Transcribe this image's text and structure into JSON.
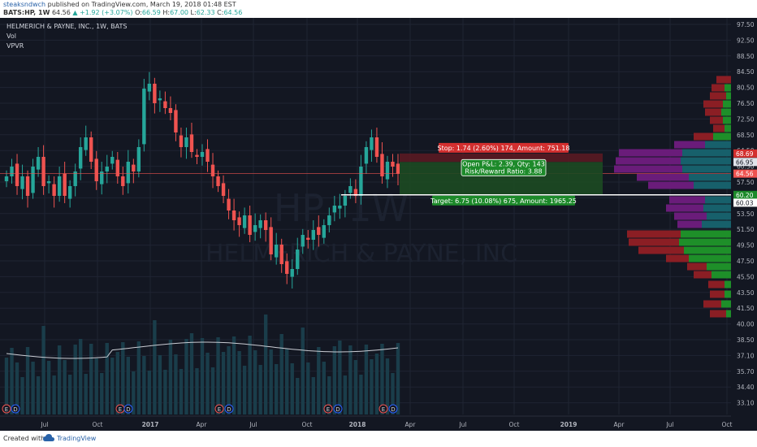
{
  "header": {
    "author": "steaksndwch",
    "published": " published on TradingView.com, March 19, 2018 01:48 EST",
    "symbol": "BATS:HP, 1W",
    "last": "64.56",
    "change": "+1.92 (+3.07%)",
    "o_label": "O:",
    "o": "66.59",
    "h_label": "H:",
    "h": "67.00",
    "l_label": "L:",
    "l": "62.33",
    "c_label": "C:",
    "c": "64.56"
  },
  "legend": {
    "title": "HELMERICH & PAYNE, INC., 1W, BATS",
    "vol": "Vol",
    "vpvr": "VPVR"
  },
  "watermark": {
    "ticker": "HP, 1W",
    "name": "HELMERICH & PAYNE, INC"
  },
  "price_axis": [
    "97.50",
    "92.50",
    "88.50",
    "84.50",
    "80.50",
    "76.50",
    "72.50",
    "68.50",
    "64.50",
    "60.50",
    "57.50",
    "55.50",
    "53.50",
    "51.50",
    "49.50",
    "47.50",
    "45.50",
    "43.50",
    "41.50",
    "40.00",
    "38.50",
    "37.10",
    "35.70",
    "34.40",
    "33.10"
  ],
  "price_tags": {
    "stop": "68.69",
    "entry_upper": "66.95",
    "current": "64.56",
    "target_top": "60.20",
    "target_low": "60.03"
  },
  "time_axis": [
    "Jul",
    "Oct",
    "2017",
    "Apr",
    "Jul",
    "Oct",
    "2018",
    "Apr",
    "Jul",
    "Oct",
    "2019",
    "Apr",
    "Jul",
    "Oct"
  ],
  "position": {
    "stop": "Stop: 1.74 (2.60%) 174, Amount: 751.18",
    "open_pnl": "Open P&L: 2.39, Qty: 143",
    "rr": "Risk/Reward Ratio: 3.88",
    "target": "Target: 6.75 (10.08%) 675, Amount: 1965.25"
  },
  "events": [
    "E",
    "D",
    "E",
    "D",
    "E",
    "D",
    "E",
    "D",
    "E",
    "D",
    "E",
    "D",
    "E",
    "D"
  ],
  "footer": {
    "created": "Created with",
    "brand": "TradingView"
  },
  "colors": {
    "up": "#26a69a",
    "down": "#ef5350",
    "bg": "#131722",
    "grid": "#1f2433"
  },
  "chart_data": {
    "type": "candlestick",
    "title": "HELMERICH & PAYNE, INC., 1W, BATS",
    "y_range": [
      33.1,
      97.5
    ],
    "x_range": [
      "2016-05",
      "2019-10"
    ],
    "approx_weekly_close": [
      64,
      66,
      62,
      64,
      60,
      66,
      68,
      62,
      63,
      60,
      64,
      60,
      62,
      65,
      70,
      72,
      67,
      63,
      65,
      66,
      68,
      64,
      62,
      67,
      65,
      70,
      82,
      83,
      79,
      80,
      78,
      77,
      73,
      70,
      72,
      69,
      68,
      69,
      67,
      64,
      62,
      60,
      57,
      55,
      54,
      56,
      52,
      54,
      55,
      53,
      48,
      50,
      46,
      44,
      45,
      49,
      52,
      51,
      53,
      52,
      54,
      56,
      58,
      58,
      60,
      62,
      60,
      66,
      70,
      72,
      68,
      64,
      67,
      66,
      64.56
    ]
  }
}
